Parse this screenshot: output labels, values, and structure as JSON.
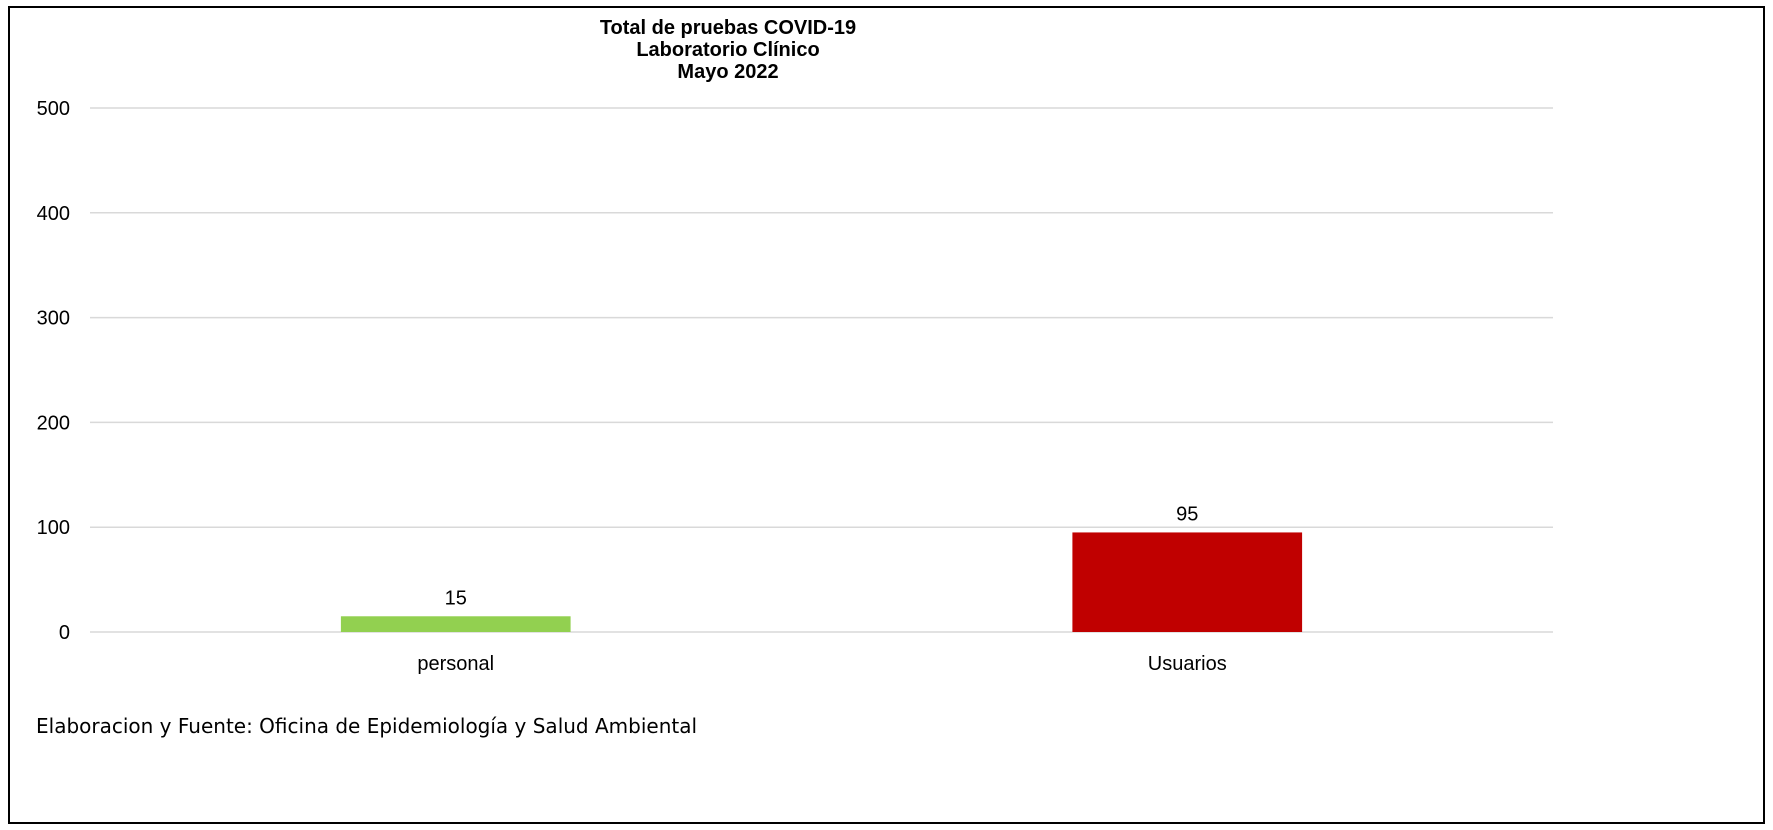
{
  "chart_data": {
    "type": "bar",
    "title": [
      "Total de pruebas COVID-19",
      "Laboratorio Clínico",
      "Mayo 2022"
    ],
    "categories": [
      "personal",
      "Usuarios"
    ],
    "values": [
      15,
      95
    ],
    "colors": [
      "#92d050",
      "#c00000"
    ],
    "data_labels": [
      "15",
      "95"
    ],
    "yticks": [
      0,
      100,
      200,
      300,
      400,
      500
    ],
    "ylim": [
      0,
      500
    ],
    "grid": true,
    "legend": "none"
  },
  "footnote": "Elaboracion y Fuente: Oficina de Epidemiología y Salud Ambiental"
}
